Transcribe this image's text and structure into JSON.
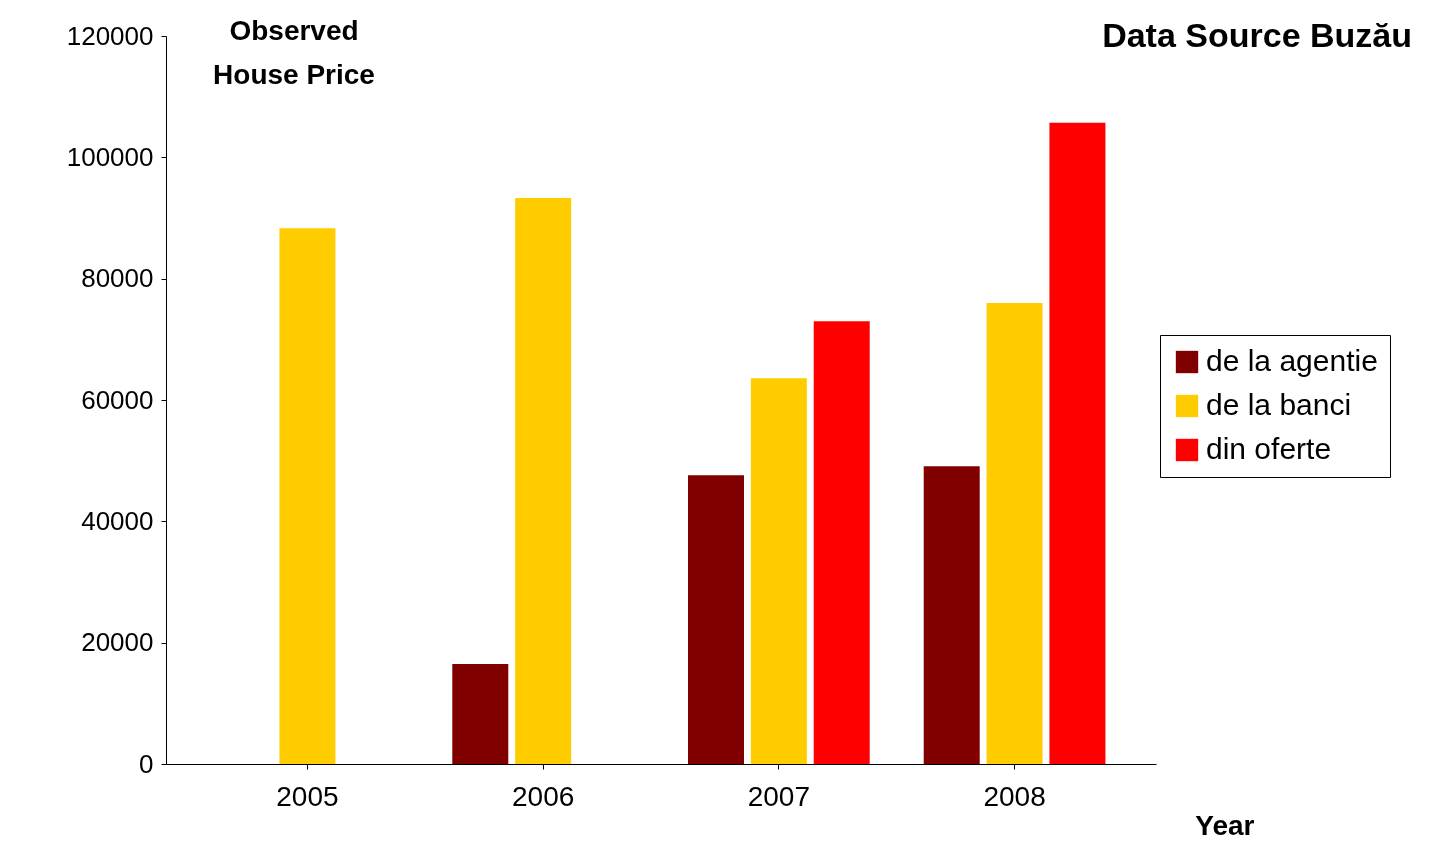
{
  "chart_data": {
    "type": "bar",
    "ylabel": "Observed\nHouse Price",
    "xlabel": "Year",
    "annotations": [
      "Data Source Buzău"
    ],
    "categories": [
      "2005",
      "2006",
      "2007",
      "2008"
    ],
    "series": [
      {
        "name": "de la agentie",
        "color": "#800000",
        "values": [
          null,
          16500,
          47600,
          49100
        ]
      },
      {
        "name": "de la banci",
        "color": "#ffcc00",
        "values": [
          88300,
          93300,
          63600,
          76000
        ]
      },
      {
        "name": "din oferte",
        "color": "#ff0000",
        "values": [
          null,
          null,
          73000,
          105700
        ]
      }
    ],
    "ylim": [
      0,
      120000
    ],
    "yticks": [
      0,
      20000,
      40000,
      60000,
      80000,
      100000,
      120000
    ],
    "grid": false,
    "legend": "right"
  }
}
